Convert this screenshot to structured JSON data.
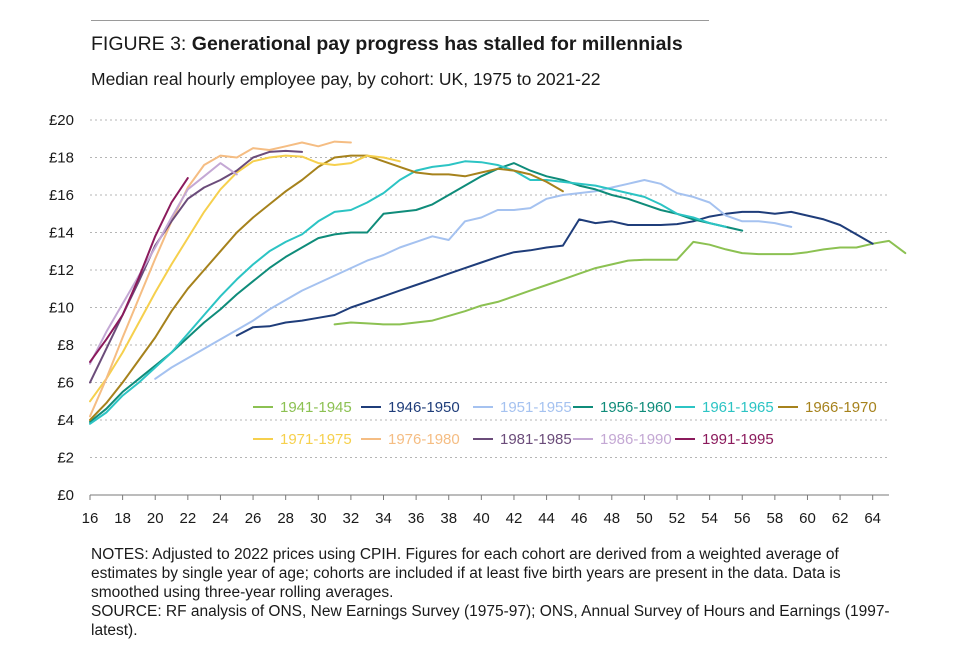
{
  "header": {
    "figure_label": "FIGURE 3:",
    "title": "Generational pay progress has stalled for millennials",
    "subtitle": "Median real hourly employee pay, by cohort: UK, 1975 to 2021-22"
  },
  "notes": {
    "line1": "NOTES: Adjusted to 2022 prices using CPIH. Figures for each cohort are derived from a weighted average of estimates by single year of age; cohorts are included if at least five birth years are present in the data. Data is smoothed using three-year rolling averages.",
    "line2": "SOURCE: RF analysis of ONS, New Earnings Survey (1975-97); ONS, Annual Survey of Hours and Earnings (1997-latest)."
  },
  "chart_data": {
    "type": "line",
    "xlabel": "",
    "ylabel": "",
    "xlim": [
      16,
      65
    ],
    "ylim": [
      0,
      20
    ],
    "x_ticks": [
      "16",
      "18",
      "20",
      "22",
      "24",
      "26",
      "28",
      "30",
      "32",
      "34",
      "36",
      "38",
      "40",
      "42",
      "44",
      "46",
      "48",
      "50",
      "52",
      "54",
      "56",
      "58",
      "60",
      "62",
      "64"
    ],
    "y_ticks": [
      "£0",
      "£2",
      "£4",
      "£6",
      "£8",
      "£10",
      "£12",
      "£14",
      "£16",
      "£18",
      "£20"
    ],
    "grid": "horizontal dotted",
    "legend_position": "lower-right inside plot",
    "series": [
      {
        "name": "1941-1945",
        "color": "#8cc152",
        "x_start": 31,
        "values": [
          9.1,
          9.2,
          9.15,
          9.1,
          9.1,
          9.2,
          9.3,
          9.55,
          9.8,
          10.1,
          10.3,
          10.6,
          10.9,
          11.2,
          11.5,
          11.8,
          12.1,
          12.3,
          12.5,
          12.55,
          12.55,
          12.55,
          13.5,
          13.35,
          13.1,
          12.9,
          12.85,
          12.85,
          12.85,
          12.95,
          13.1,
          13.2,
          13.2,
          13.4,
          13.55,
          12.9
        ]
      },
      {
        "name": "1946-1950",
        "color": "#1f3d7a",
        "x_start": 25,
        "values": [
          8.5,
          8.95,
          9.0,
          9.2,
          9.3,
          9.45,
          9.6,
          10.0,
          10.3,
          10.6,
          10.9,
          11.2,
          11.5,
          11.8,
          12.1,
          12.4,
          12.7,
          12.95,
          13.05,
          13.2,
          13.3,
          14.7,
          14.5,
          14.6,
          14.4,
          14.4,
          14.4,
          14.45,
          14.6,
          14.85,
          15.0,
          15.1,
          15.1,
          15.0,
          15.1,
          14.9,
          14.7,
          14.4,
          13.9,
          13.4
        ]
      },
      {
        "name": "1951-1955",
        "color": "#a5c2f0",
        "x_start": 20,
        "values": [
          6.2,
          6.8,
          7.3,
          7.8,
          8.3,
          8.8,
          9.3,
          9.9,
          10.4,
          10.9,
          11.3,
          11.7,
          12.1,
          12.5,
          12.8,
          13.2,
          13.5,
          13.8,
          13.6,
          14.6,
          14.8,
          15.2,
          15.2,
          15.3,
          15.8,
          16.0,
          16.1,
          16.2,
          16.4,
          16.6,
          16.8,
          16.6,
          16.1,
          15.9,
          15.6,
          14.9,
          14.6,
          14.6,
          14.5,
          14.3
        ]
      },
      {
        "name": "1956-1960",
        "color": "#0f8c7a",
        "x_start": 16,
        "values": [
          3.9,
          4.6,
          5.5,
          6.2,
          6.9,
          7.6,
          8.4,
          9.2,
          9.9,
          10.7,
          11.4,
          12.1,
          12.7,
          13.2,
          13.7,
          13.9,
          14.0,
          14.0,
          15.0,
          15.1,
          15.2,
          15.5,
          16.0,
          16.5,
          17.0,
          17.4,
          17.7,
          17.3,
          17.0,
          16.8,
          16.5,
          16.3,
          16.0,
          15.8,
          15.5,
          15.2,
          15.0,
          14.7,
          14.5,
          14.3,
          14.1
        ]
      },
      {
        "name": "1961-1965",
        "color": "#2cc4c4",
        "x_start": 16,
        "values": [
          3.8,
          4.4,
          5.3,
          6.0,
          6.8,
          7.6,
          8.6,
          9.6,
          10.6,
          11.5,
          12.3,
          13.0,
          13.5,
          13.9,
          14.6,
          15.1,
          15.2,
          15.6,
          16.1,
          16.8,
          17.3,
          17.5,
          17.6,
          17.8,
          17.75,
          17.6,
          17.3,
          16.8,
          16.8,
          16.7,
          16.6,
          16.5,
          16.3,
          16.1,
          15.9,
          15.5,
          15.0,
          14.8,
          14.5,
          14.3
        ]
      },
      {
        "name": "1966-1970",
        "color": "#a6821c",
        "x_start": 16,
        "values": [
          4.0,
          4.9,
          6.0,
          7.2,
          8.4,
          9.8,
          11.0,
          12.0,
          13.0,
          14.0,
          14.8,
          15.5,
          16.2,
          16.8,
          17.5,
          18.0,
          18.1,
          18.1,
          17.8,
          17.5,
          17.2,
          17.1,
          17.1,
          17.0,
          17.2,
          17.4,
          17.3,
          17.1,
          16.7,
          16.2
        ]
      },
      {
        "name": "1971-1975",
        "color": "#f6d04d",
        "x_start": 16,
        "values": [
          5.0,
          6.2,
          7.6,
          9.2,
          10.8,
          12.3,
          13.7,
          15.1,
          16.3,
          17.2,
          17.8,
          18.0,
          18.1,
          18.05,
          17.7,
          17.6,
          17.7,
          18.1,
          18.0,
          17.8
        ]
      },
      {
        "name": "1976-1980",
        "color": "#f5bd83",
        "x_start": 16,
        "values": [
          4.2,
          6.2,
          8.4,
          10.5,
          12.6,
          14.6,
          16.4,
          17.6,
          18.1,
          18.0,
          18.5,
          18.4,
          18.6,
          18.8,
          18.6,
          18.85,
          18.8
        ]
      },
      {
        "name": "1981-1985",
        "color": "#6b4c7a",
        "x_start": 16,
        "values": [
          6.0,
          7.8,
          9.6,
          11.4,
          13.3,
          14.6,
          15.8,
          16.4,
          16.8,
          17.3,
          18.0,
          18.3,
          18.35,
          18.3
        ]
      },
      {
        "name": "1986-1990",
        "color": "#c4a8d4",
        "x_start": 16,
        "values": [
          7.0,
          8.7,
          10.2,
          11.7,
          13.2,
          14.8,
          16.3,
          17.0,
          17.7,
          17.1
        ]
      },
      {
        "name": "1991-1995",
        "color": "#8b1a5c",
        "x_start": 16,
        "values": [
          7.1,
          8.3,
          9.6,
          11.6,
          13.8,
          15.6,
          16.9
        ]
      }
    ]
  }
}
